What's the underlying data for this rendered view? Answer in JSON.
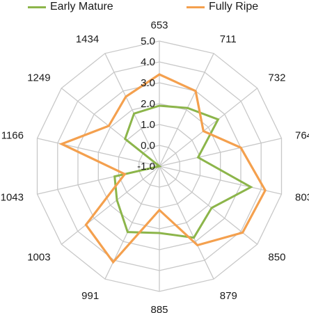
{
  "chart_data": {
    "type": "radar",
    "categories": [
      "653",
      "711",
      "732",
      "764",
      "803",
      "850",
      "879",
      "885",
      "991",
      "1003",
      "1043",
      "1166",
      "1249",
      "1434"
    ],
    "range": [
      -1.0,
      5.0
    ],
    "ticks": [
      "-1.0",
      "0.0",
      "1.0",
      "2.0",
      "3.0",
      "4.0",
      "5.0"
    ],
    "tick_values": [
      -1,
      0,
      1,
      2,
      3,
      4,
      5
    ],
    "grid": true,
    "legend_position": "top",
    "series": [
      {
        "name": "Early Mature",
        "color": "#8cb54a",
        "values": [
          1.9,
          2.1,
          2.6,
          0.9,
          3.5,
          2.2,
          2.8,
          2.2,
          2.5,
          1.6,
          1.2,
          -1.0,
          1.1,
          1.8
        ]
      },
      {
        "name": "Fully Ripe",
        "color": "#f4a04e",
        "values": [
          3.4,
          3.0,
          1.7,
          3.0,
          4.2,
          4.1,
          3.2,
          1.1,
          4.1,
          3.5,
          0.7,
          3.8,
          2.1,
          2.7
        ]
      }
    ]
  }
}
